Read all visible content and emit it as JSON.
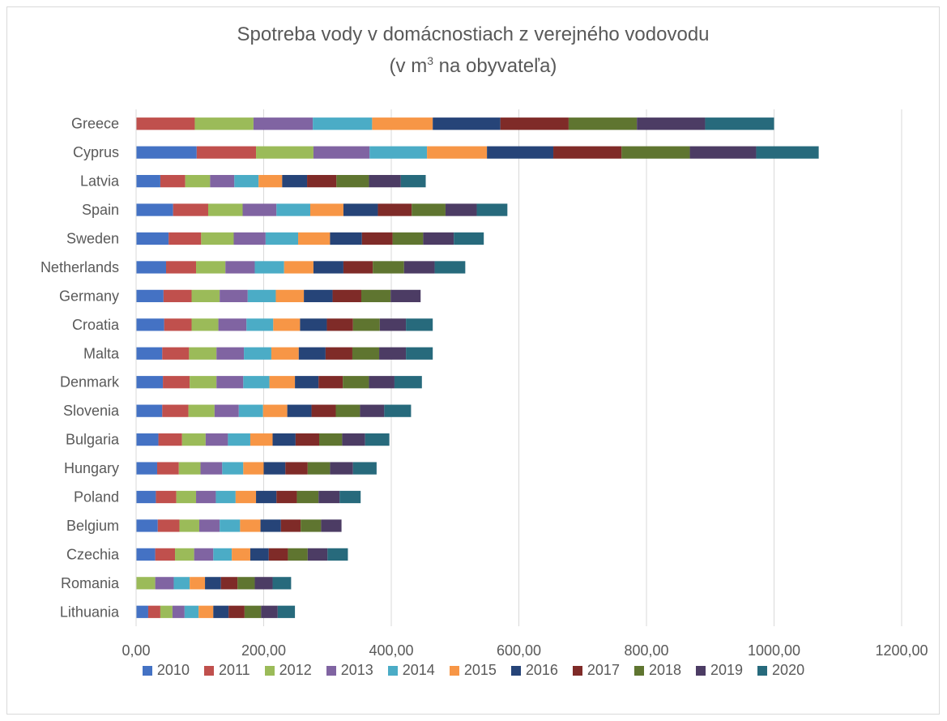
{
  "title_line1": "Spotreba vody v domácnostiach z verejného vodovodu",
  "title_line2_pre": "(v m",
  "title_line2_sup": "3",
  "title_line2_post": " na obyvateľa)",
  "colors": [
    "#4472c4",
    "#c0504d",
    "#9bbb59",
    "#8064a2",
    "#4bacc6",
    "#f79646",
    "#264478",
    "#7f2b28",
    "#5f7530",
    "#4c3c64",
    "#276a7c"
  ],
  "chart_data": {
    "type": "bar",
    "orientation": "horizontal",
    "stacked": true,
    "title": "Spotreba vody v domácnostiach z verejného vodovodu (v m³ na obyvateľa)",
    "xlim": [
      0,
      1200
    ],
    "x_ticks": [
      "0,00",
      "200,00",
      "400,00",
      "600,00",
      "800,00",
      "1000,00",
      "1200,00"
    ],
    "grid": "vertical",
    "legend_position": "bottom",
    "categories": [
      "Greece",
      "Cyprus",
      "Latvia",
      "Spain",
      "Sweden",
      "Netherlands",
      "Germany",
      "Croatia",
      "Malta",
      "Denmark",
      "Slovenia",
      "Bulgaria",
      "Hungary",
      "Poland",
      "Belgium",
      "Czechia",
      "Romania",
      "Lithuania"
    ],
    "series": [
      {
        "name": "2010",
        "values": [
          0,
          95,
          38,
          58,
          51,
          47,
          43,
          44,
          41,
          42,
          41,
          35,
          33,
          31,
          34,
          30,
          0,
          19
        ]
      },
      {
        "name": "2011",
        "values": [
          92,
          93,
          39,
          55,
          51,
          47,
          44,
          43,
          42,
          42,
          41,
          37,
          34,
          32,
          34,
          31,
          0,
          19
        ]
      },
      {
        "name": "2012",
        "values": [
          92,
          90,
          39,
          54,
          51,
          46,
          44,
          42,
          43,
          42,
          41,
          37,
          34,
          31,
          31,
          30,
          30,
          19
        ]
      },
      {
        "name": "2013",
        "values": [
          93,
          88,
          38,
          53,
          50,
          46,
          44,
          44,
          43,
          42,
          38,
          35,
          34,
          31,
          32,
          30,
          29,
          19
        ]
      },
      {
        "name": "2014",
        "values": [
          93,
          90,
          38,
          53,
          51,
          46,
          44,
          42,
          43,
          41,
          38,
          35,
          33,
          31,
          32,
          29,
          25,
          22
        ]
      },
      {
        "name": "2015",
        "values": [
          95,
          94,
          37,
          52,
          50,
          46,
          44,
          42,
          43,
          40,
          38,
          35,
          32,
          32,
          32,
          29,
          24,
          23
        ]
      },
      {
        "name": "2016",
        "values": [
          106,
          104,
          39,
          54,
          50,
          47,
          45,
          42,
          42,
          37,
          38,
          36,
          34,
          32,
          32,
          29,
          25,
          24
        ]
      },
      {
        "name": "2017",
        "values": [
          107,
          107,
          46,
          53,
          48,
          46,
          45,
          41,
          42,
          38,
          38,
          37,
          35,
          32,
          31,
          30,
          26,
          25
        ]
      },
      {
        "name": "2018",
        "values": [
          107,
          107,
          51,
          53,
          48,
          49,
          46,
          42,
          42,
          41,
          38,
          36,
          35,
          34,
          32,
          31,
          27,
          26
        ]
      },
      {
        "name": "2019",
        "values": [
          107,
          104,
          50,
          49,
          48,
          48,
          47,
          41,
          42,
          40,
          38,
          36,
          36,
          33,
          32,
          31,
          28,
          26
        ]
      },
      {
        "name": "2020",
        "values": [
          108,
          98,
          39,
          48,
          47,
          48,
          0,
          42,
          42,
          43,
          42,
          38,
          37,
          33,
          0,
          32,
          29,
          27
        ]
      }
    ]
  }
}
